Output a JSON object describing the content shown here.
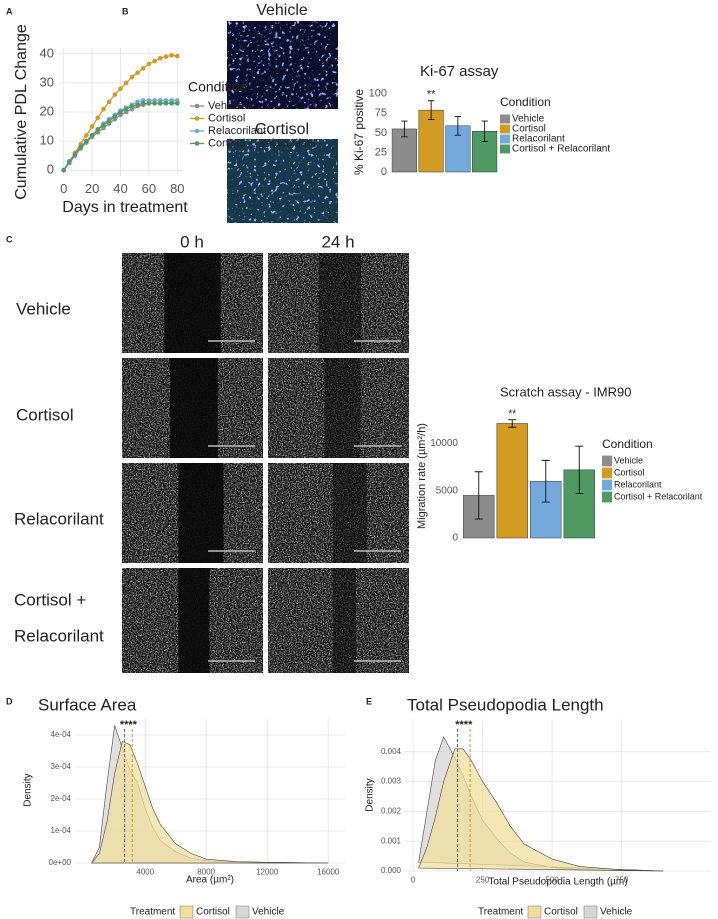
{
  "panel_letters": [
    "A",
    "B",
    "C",
    "D",
    "E"
  ],
  "images_b": {
    "labels": [
      "Vehicle",
      "Cortisol"
    ]
  },
  "images_c": {
    "columns": [
      "0 h",
      "24 h"
    ],
    "rows": [
      "Vehicle",
      "Cortisol",
      "Relacorilant",
      [
        "Cortisol +",
        "Relacorilant"
      ]
    ]
  },
  "chart_data": [
    {
      "type": "line",
      "xlabel": "Days in treatment",
      "ylabel": "Cumulative PDL Change",
      "x": [
        0,
        4,
        8,
        12,
        16,
        20,
        24,
        28,
        32,
        36,
        40,
        44,
        48,
        52,
        56,
        60,
        64,
        68,
        72,
        76,
        80
      ],
      "xlim": [
        -4,
        84
      ],
      "xticks": [
        0,
        20,
        40,
        60,
        80
      ],
      "ylim": [
        -2,
        42
      ],
      "yticks": [
        0,
        10,
        20,
        30,
        40
      ],
      "grid": true,
      "legend": "right",
      "legend_title": "Condition",
      "series": [
        {
          "name": "Vehicle",
          "color": "#8c8c8c",
          "values": [
            0,
            2.5,
            5,
            7.5,
            9.5,
            11.5,
            13,
            14.5,
            16,
            17.5,
            19,
            20,
            21,
            22,
            22.5,
            23,
            23,
            23,
            23,
            23,
            23
          ]
        },
        {
          "name": "Cortisol",
          "color": "#d29b22",
          "values": [
            0,
            3,
            6,
            9,
            12,
            15,
            18,
            21,
            23.5,
            26,
            28,
            30,
            32,
            33.5,
            35,
            36.5,
            37.5,
            38.5,
            39,
            39.5,
            39.2
          ]
        },
        {
          "name": "Relacorilant",
          "color": "#74a9dc",
          "values": [
            0,
            3,
            5.5,
            8,
            10,
            12,
            14,
            16,
            17.5,
            19,
            20.5,
            21.5,
            22.5,
            23.5,
            24,
            24,
            24,
            24,
            24,
            24,
            24
          ]
        },
        {
          "name": "Cortisol + Relacorilant",
          "color": "#4f9a62",
          "values": [
            0,
            3,
            5.5,
            8,
            10,
            12,
            14,
            15.5,
            17,
            18.5,
            20,
            21,
            22,
            22.5,
            23,
            23,
            23,
            23,
            23,
            23,
            23
          ]
        }
      ]
    },
    {
      "type": "bar",
      "title": "Ki-67 assay",
      "ylabel": "% Ki-67 positive",
      "categories": [
        "Vehicle",
        "Cortisol",
        "Relacorilant",
        "Cortisol + Relacorilant"
      ],
      "values": [
        55,
        79,
        59,
        52
      ],
      "errors": [
        10,
        12,
        12,
        13
      ],
      "colors": [
        "#8c8c8c",
        "#d29b22",
        "#74a9dc",
        "#4f9a62"
      ],
      "ylim": [
        0,
        106
      ],
      "yticks": [
        0,
        25,
        50,
        75,
        100
      ],
      "grid": false,
      "annotation": "**",
      "legend": "right",
      "legend_title": "Condition"
    },
    {
      "type": "bar",
      "title": "Scratch assay - IMR90",
      "ylabel": "Migration rate (µm²/h)",
      "categories": [
        "Vehicle",
        "Cortisol",
        "Relacorilant",
        "Cortisol + Relacorilant"
      ],
      "values": [
        4500,
        12100,
        6000,
        7200
      ],
      "errors": [
        2500,
        400,
        2200,
        2500
      ],
      "colors": [
        "#8c8c8c",
        "#d29b22",
        "#74a9dc",
        "#4f9a62"
      ],
      "ylim": [
        0,
        13100
      ],
      "yticks": [
        0,
        5000,
        10000
      ],
      "grid": false,
      "annotation": "**",
      "legend": "right",
      "legend_title": "Condition"
    },
    {
      "type": "density",
      "title": "Surface Area",
      "xlabel": "Area (µm²)",
      "ylabel": "Density",
      "x": [
        500,
        1000,
        1500,
        2000,
        2500,
        3000,
        3500,
        4000,
        4500,
        5000,
        6000,
        7000,
        8000,
        10000,
        12000,
        16000
      ],
      "xlim": [
        -600,
        17100
      ],
      "xticks": [
        4000,
        8000,
        12000,
        16000
      ],
      "ylim": [
        0,
        0.00045
      ],
      "yticks": [
        {
          "value": 0,
          "label": "0e+00"
        },
        {
          "value": 0.0001,
          "label": "1e-04"
        },
        {
          "value": 0.0002,
          "label": "2e-04"
        },
        {
          "value": 0.0003,
          "label": "3e-04"
        },
        {
          "value": 0.0004,
          "label": "4e-04"
        }
      ],
      "grid": true,
      "annotation": "****",
      "legend": "bottom",
      "legend_title": "Treatment",
      "series": [
        {
          "name": "Cortisol",
          "color": "#f1dd9c",
          "line_color": "#d29b22",
          "median": 3150,
          "values": [
            0,
            3e-05,
            0.00013,
            0.00028,
            0.00038,
            0.00037,
            0.00031,
            0.00024,
            0.00017,
            0.00012,
            6e-05,
            3e-05,
            1.2e-05,
            4e-06,
            2e-06,
            0
          ]
        },
        {
          "name": "Vehicle",
          "color": "#d6d6d6",
          "line_color": "#666666",
          "median": 2650,
          "values": [
            0,
            5e-05,
            0.00025,
            0.00043,
            0.00036,
            0.00029,
            0.00025,
            0.00017,
            0.00011,
            7e-05,
            3.5e-05,
            1.5e-05,
            7e-06,
            3e-06,
            2e-06,
            0
          ]
        }
      ]
    },
    {
      "type": "density",
      "title": "Total Pseudopodia Length",
      "xlabel": "Total Pseudopodia Length (µm)",
      "ylabel": "Density",
      "x": [
        20,
        50,
        80,
        110,
        150,
        180,
        210,
        250,
        300,
        350,
        400,
        500,
        600,
        750,
        900
      ],
      "xlim": [
        -29,
        1068
      ],
      "xticks": [
        0,
        250,
        500,
        750
      ],
      "ylim": [
        0,
        0.0051
      ],
      "yticks": [
        {
          "value": 0,
          "label": "0.000"
        },
        {
          "value": 0.001,
          "label": "0.001"
        },
        {
          "value": 0.002,
          "label": "0.002"
        },
        {
          "value": 0.003,
          "label": "0.003"
        },
        {
          "value": 0.004,
          "label": "0.004"
        }
      ],
      "grid": true,
      "annotation": "****",
      "legend": "bottom",
      "legend_title": "Treatment",
      "series": [
        {
          "name": "Cortisol",
          "color": "#f1dd9c",
          "line_color": "#d29b22",
          "median": 205,
          "values": [
            0.0001,
            0.0008,
            0.0018,
            0.003,
            0.0041,
            0.0041,
            0.0037,
            0.003,
            0.0023,
            0.0015,
            0.0009,
            0.0004,
            0.00015,
            4e-05,
            0
          ]
        },
        {
          "name": "Vehicle",
          "color": "#d6d6d6",
          "line_color": "#666666",
          "median": 160,
          "values": [
            0.0003,
            0.002,
            0.0037,
            0.0045,
            0.0038,
            0.0032,
            0.0025,
            0.0017,
            0.0011,
            0.0006,
            0.0003,
            0.00012,
            5e-05,
            2e-05,
            0
          ]
        }
      ]
    }
  ]
}
